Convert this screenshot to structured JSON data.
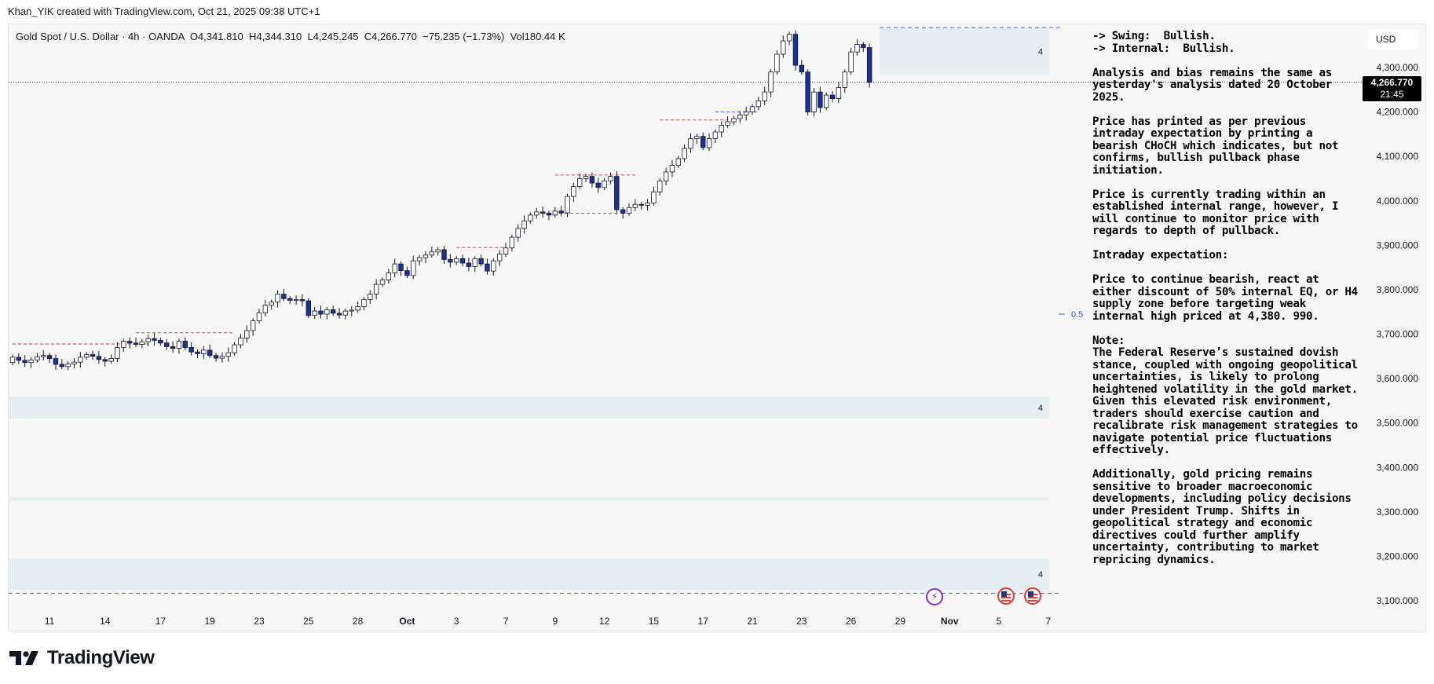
{
  "caption": "Khan_YIK created with TradingView.com, Oct 21, 2025 09:38 UTC+1",
  "legend": {
    "symbol": "Gold Spot / U.S. Dollar · 4h · OANDA",
    "open": "O4,341.810",
    "high": "H4,344.310",
    "low": "L4,245.245",
    "close": "C4,266.770",
    "change": "−75.235 (−1.73%)",
    "volume": "Vol180.44 K"
  },
  "currency": "USD",
  "price_tag": {
    "price": "4,266.770",
    "countdown": "21:45"
  },
  "zone_labels": [
    "4",
    "4",
    "4"
  ],
  "fib_label": "0.5",
  "brand": "TradingView",
  "events": [
    {
      "type": "lightning-icon"
    },
    {
      "type": "us-flag-icon"
    },
    {
      "type": "us-flag-icon"
    }
  ],
  "notes": [
    "-> Swing:  Bullish.\n-> Internal:  Bullish.",
    "Analysis and bias remains the same as yesterday's analysis dated 20 October 2025.",
    "Price has printed as per previous intraday expectation by printing a bearish CHoCH which indicates, but not confirms, bullish pullback phase initiation.",
    "Price is currently trading within an established internal range, however, I will continue to monitor price with regards to depth of pullback.",
    "Intraday expectation:",
    "Price to continue bearish, react at either discount of 50% internal EQ, or H4 supply zone before targeting weak internal high priced at 4,380. 990.",
    "Note:\nThe Federal Reserve’s sustained dovish stance, coupled with ongoing geopolitical uncertainties, is likely to prolong heightened volatility in the gold market. Given this elevated risk environment, traders should exercise caution and recalibrate risk management strategies to navigate potential price fluctuations effectively.",
    "Additionally, gold pricing remains sensitive to broader macroeconomic developments, including policy decisions under President Trump. Shifts in geopolitical strategy and economic directives could further amplify uncertainty, contributing to market repricing dynamics."
  ],
  "chart_data": {
    "type": "candlestick",
    "symbol": "XAUUSD",
    "timeframe": "4h",
    "ylim": [
      3070,
      4390
    ],
    "y_ticks": [
      3100,
      3200,
      3300,
      3400,
      3500,
      3600,
      3700,
      3800,
      3900,
      4000,
      4100,
      4200,
      4300
    ],
    "y_tick_labels": [
      "3,100.000",
      "3,200.000",
      "3,300.000",
      "3,400.000",
      "3,500.000",
      "3,600.000",
      "3,700.000",
      "3,800.000",
      "3,900.000",
      "4,000.000",
      "4,100.000",
      "4,200.000",
      "4,300.000"
    ],
    "x_tick_labels": [
      "11",
      "14",
      "17",
      "19",
      "23",
      "25",
      "28",
      "Oct",
      "3",
      "7",
      "9",
      "12",
      "15",
      "17",
      "21",
      "23",
      "26",
      "29",
      "Nov",
      "5",
      "7"
    ],
    "x_tick_bar_index": [
      6,
      15,
      24,
      32,
      40,
      48,
      56,
      64,
      72,
      80,
      88,
      96,
      104,
      112,
      120,
      128,
      136,
      144,
      152,
      160,
      168
    ],
    "current_price": 4266.77,
    "candles_close": [
      3648,
      3641,
      3636,
      3642,
      3649,
      3652,
      3645,
      3632,
      3627,
      3633,
      3637,
      3648,
      3654,
      3650,
      3643,
      3639,
      3645,
      3670,
      3684,
      3680,
      3677,
      3683,
      3690,
      3686,
      3680,
      3672,
      3668,
      3684,
      3670,
      3660,
      3656,
      3664,
      3652,
      3646,
      3650,
      3658,
      3676,
      3691,
      3708,
      3730,
      3748,
      3765,
      3772,
      3790,
      3780,
      3776,
      3778,
      3775,
      3742,
      3752,
      3745,
      3755,
      3747,
      3743,
      3752,
      3754,
      3762,
      3778,
      3790,
      3812,
      3822,
      3838,
      3858,
      3843,
      3832,
      3865,
      3872,
      3878,
      3885,
      3890,
      3868,
      3862,
      3870,
      3860,
      3852,
      3870,
      3858,
      3842,
      3865,
      3880,
      3894,
      3918,
      3938,
      3955,
      3968,
      3975,
      3972,
      3968,
      3977,
      3973,
      4010,
      4032,
      4050,
      4055,
      4040,
      4030,
      4045,
      4055,
      3980,
      3972,
      3985,
      3992,
      3990,
      3995,
      4020,
      4045,
      4065,
      4080,
      4095,
      4118,
      4140,
      4145,
      4120,
      4140,
      4155,
      4170,
      4178,
      4185,
      4193,
      4200,
      4212,
      4225,
      4245,
      4290,
      4330,
      4360,
      4375,
      4305,
      4290,
      4200,
      4245,
      4210,
      4238,
      4230,
      4255,
      4290,
      4335,
      4352,
      4345,
      4266.77
    ],
    "zones": [
      {
        "name": "supply-zone-h4",
        "from": 4285,
        "to": 4388
      },
      {
        "name": "demand-zone-1",
        "from": 3510,
        "to": 3560
      },
      {
        "name": "demand-zone-2",
        "from": 3325,
        "to": 3333
      },
      {
        "name": "demand-zone-3",
        "from": 3125,
        "to": 3195
      }
    ],
    "levels": [
      {
        "price": 4390,
        "style": "dashed",
        "color": "#2962ff"
      },
      {
        "price": 3117,
        "style": "dashed",
        "color": "#2962ff"
      },
      {
        "price": 3745,
        "label": "0.5",
        "style": "fib",
        "color": "#2962ff"
      },
      {
        "price": 4266.77,
        "style": "dotted",
        "color": "#131722"
      }
    ],
    "grid": false,
    "colors": {
      "up": "#ffffff",
      "down": "#1c2f9e",
      "wick": "#131722",
      "zone": "#e3eff1"
    }
  }
}
